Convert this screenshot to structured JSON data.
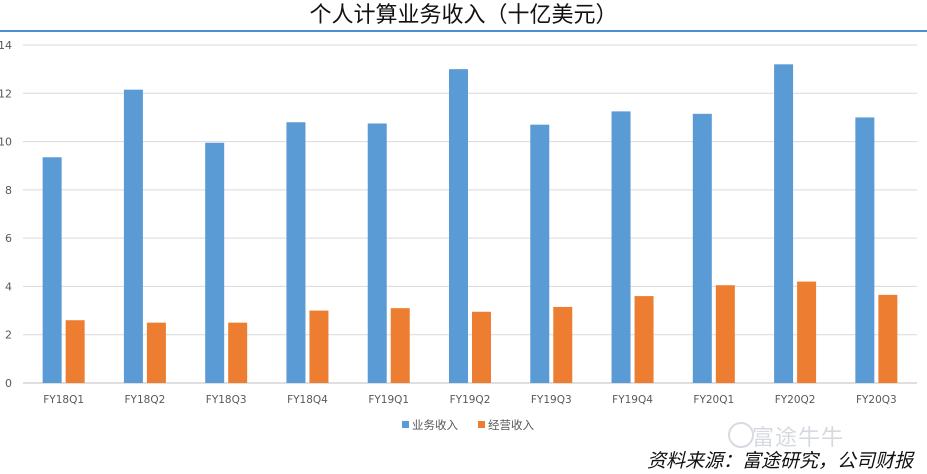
{
  "chart_data": {
    "type": "bar",
    "title": "个人计算业务收入（十亿美元）",
    "categories": [
      "FY18Q1",
      "FY18Q2",
      "FY18Q3",
      "FY18Q4",
      "FY19Q1",
      "FY19Q2",
      "FY19Q3",
      "FY19Q4",
      "FY20Q1",
      "FY20Q2",
      "FY20Q3"
    ],
    "series": [
      {
        "name": "业务收入",
        "color": "#5b9bd5",
        "values": [
          9.35,
          12.15,
          9.95,
          10.8,
          10.75,
          13.0,
          10.7,
          11.25,
          11.15,
          13.2,
          11.0
        ]
      },
      {
        "name": "经营收入",
        "color": "#ed7d31",
        "values": [
          2.6,
          2.5,
          2.5,
          3.0,
          3.1,
          2.95,
          3.15,
          3.6,
          4.05,
          4.2,
          3.65
        ]
      }
    ],
    "ylim": [
      0,
      14
    ],
    "yticks": [
      0,
      2,
      4,
      6,
      8,
      10,
      12,
      14
    ],
    "grid": true,
    "legend": "bottom"
  },
  "source": "资料来源：富途研究，公司财报",
  "watermark": "富途牛牛"
}
